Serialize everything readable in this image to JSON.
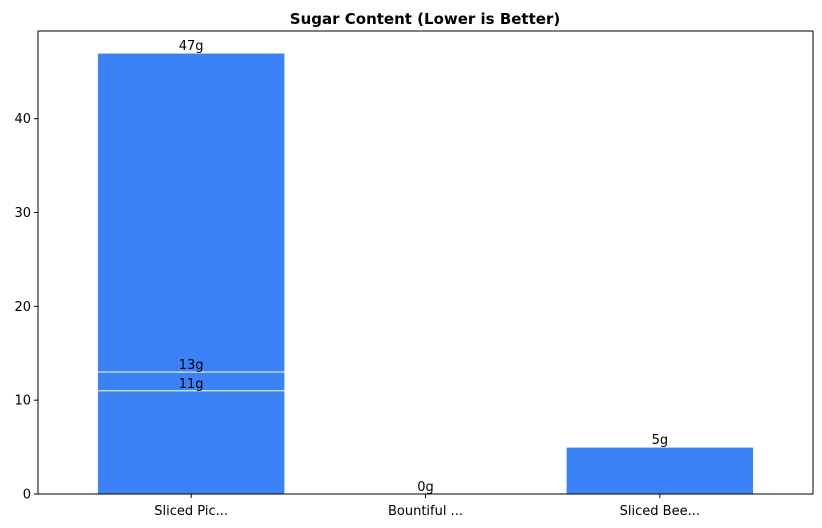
{
  "chart_data": {
    "type": "bar",
    "title": "Sugar Content (Lower is Better)",
    "xlabel": "",
    "ylabel": "",
    "categories": [
      "Sliced Pic...",
      "Bountiful ...",
      "Sliced Bee..."
    ],
    "bars": [
      {
        "category": "Sliced Pic...",
        "value": 47,
        "label": "47g"
      },
      {
        "category": "Sliced Pic...",
        "value": 13,
        "label": "13g"
      },
      {
        "category": "Sliced Pic...",
        "value": 11,
        "label": "11g"
      },
      {
        "category": "Bountiful ...",
        "value": 0,
        "label": "0g"
      },
      {
        "category": "Sliced Bee...",
        "value": 5,
        "label": "5g"
      }
    ],
    "ylim": [
      0,
      49.35
    ],
    "yticks": [
      0,
      10,
      20,
      30,
      40
    ],
    "grid": false,
    "bar_color": "#3b82f6",
    "edge_color": "#ffffff"
  }
}
